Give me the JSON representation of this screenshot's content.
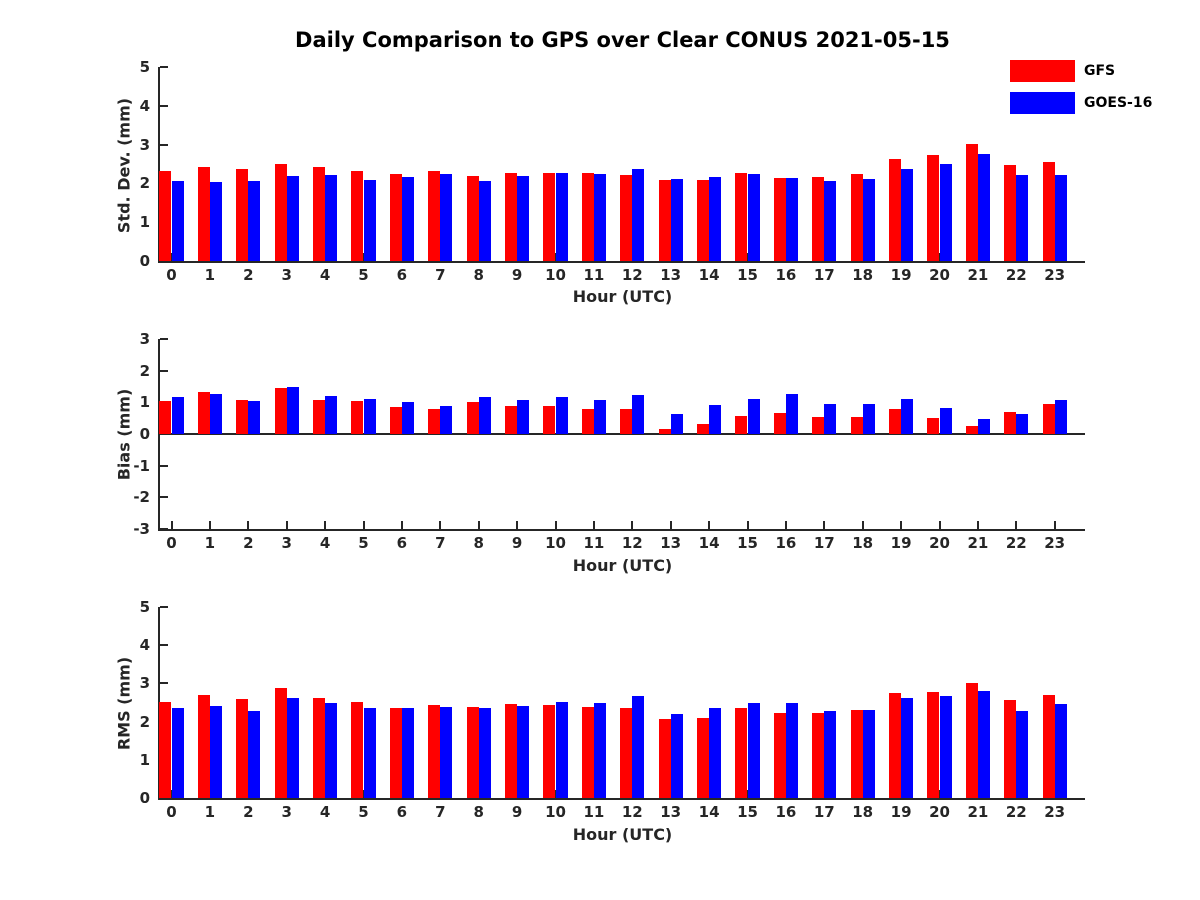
{
  "title": "Daily Comparison to GPS over Clear CONUS 2021-05-15",
  "legend": {
    "items": [
      {
        "label": "GFS",
        "color": "#ff0000"
      },
      {
        "label": "GOES-16",
        "color": "#0000ff"
      }
    ]
  },
  "chart_data": [
    {
      "type": "bar",
      "ylabel": "Std. Dev. (mm)",
      "xlabel": "Hour (UTC)",
      "ylim": [
        0,
        5
      ],
      "yticks": [
        0,
        1,
        2,
        3,
        4,
        5
      ],
      "legend_position": "top-right",
      "grid": false,
      "categories": [
        "0",
        "1",
        "2",
        "3",
        "4",
        "5",
        "6",
        "7",
        "8",
        "9",
        "10",
        "11",
        "12",
        "13",
        "14",
        "15",
        "16",
        "17",
        "18",
        "19",
        "20",
        "21",
        "22",
        "23"
      ],
      "series": [
        {
          "name": "GFS",
          "color": "#ff0000",
          "values": [
            2.32,
            2.41,
            2.38,
            2.51,
            2.43,
            2.31,
            2.24,
            2.31,
            2.18,
            2.27,
            2.28,
            2.27,
            2.22,
            2.1,
            2.1,
            2.28,
            2.14,
            2.16,
            2.25,
            2.62,
            2.72,
            3.02,
            2.48,
            2.54
          ]
        },
        {
          "name": "GOES-16",
          "color": "#0000ff",
          "values": [
            2.06,
            2.04,
            2.07,
            2.18,
            2.22,
            2.1,
            2.17,
            2.24,
            2.06,
            2.18,
            2.26,
            2.25,
            2.38,
            2.12,
            2.17,
            2.25,
            2.15,
            2.05,
            2.11,
            2.36,
            2.51,
            2.77,
            2.21,
            2.22
          ]
        }
      ]
    },
    {
      "type": "bar",
      "ylabel": "Bias (mm)",
      "xlabel": "Hour (UTC)",
      "ylim": [
        -3,
        3
      ],
      "yticks": [
        -3,
        -2,
        -1,
        0,
        1,
        2,
        3
      ],
      "grid": false,
      "categories": [
        "0",
        "1",
        "2",
        "3",
        "4",
        "5",
        "6",
        "7",
        "8",
        "9",
        "10",
        "11",
        "12",
        "13",
        "14",
        "15",
        "16",
        "17",
        "18",
        "19",
        "20",
        "21",
        "22",
        "23"
      ],
      "series": [
        {
          "name": "GFS",
          "color": "#ff0000",
          "values": [
            1.03,
            1.32,
            1.08,
            1.45,
            1.06,
            1.05,
            0.86,
            0.78,
            1.0,
            0.9,
            0.89,
            0.78,
            0.8,
            0.15,
            0.32,
            0.56,
            0.67,
            0.55,
            0.53,
            0.79,
            0.52,
            0.25,
            0.7,
            0.96
          ]
        },
        {
          "name": "GOES-16",
          "color": "#0000ff",
          "values": [
            1.17,
            1.26,
            1.03,
            1.49,
            1.21,
            1.1,
            1.02,
            0.89,
            1.17,
            1.08,
            1.18,
            1.06,
            1.23,
            0.63,
            0.92,
            1.09,
            1.25,
            0.96,
            0.96,
            1.1,
            0.83,
            0.47,
            0.64,
            1.06
          ]
        }
      ]
    },
    {
      "type": "bar",
      "ylabel": "RMS (mm)",
      "xlabel": "Hour (UTC)",
      "ylim": [
        0,
        5
      ],
      "yticks": [
        0,
        1,
        2,
        3,
        4,
        5
      ],
      "grid": false,
      "categories": [
        "0",
        "1",
        "2",
        "3",
        "4",
        "5",
        "6",
        "7",
        "8",
        "9",
        "10",
        "11",
        "12",
        "13",
        "14",
        "15",
        "16",
        "17",
        "18",
        "19",
        "20",
        "21",
        "22",
        "23"
      ],
      "series": [
        {
          "name": "GFS",
          "color": "#ff0000",
          "values": [
            2.52,
            2.7,
            2.58,
            2.87,
            2.62,
            2.51,
            2.36,
            2.43,
            2.39,
            2.45,
            2.43,
            2.38,
            2.36,
            2.07,
            2.09,
            2.36,
            2.23,
            2.22,
            2.31,
            2.74,
            2.77,
            3.01,
            2.57,
            2.7
          ]
        },
        {
          "name": "GOES-16",
          "color": "#0000ff",
          "values": [
            2.35,
            2.41,
            2.29,
            2.62,
            2.5,
            2.35,
            2.36,
            2.37,
            2.35,
            2.42,
            2.51,
            2.5,
            2.67,
            2.21,
            2.36,
            2.49,
            2.48,
            2.27,
            2.31,
            2.61,
            2.66,
            2.81,
            2.28,
            2.47
          ]
        }
      ]
    }
  ]
}
